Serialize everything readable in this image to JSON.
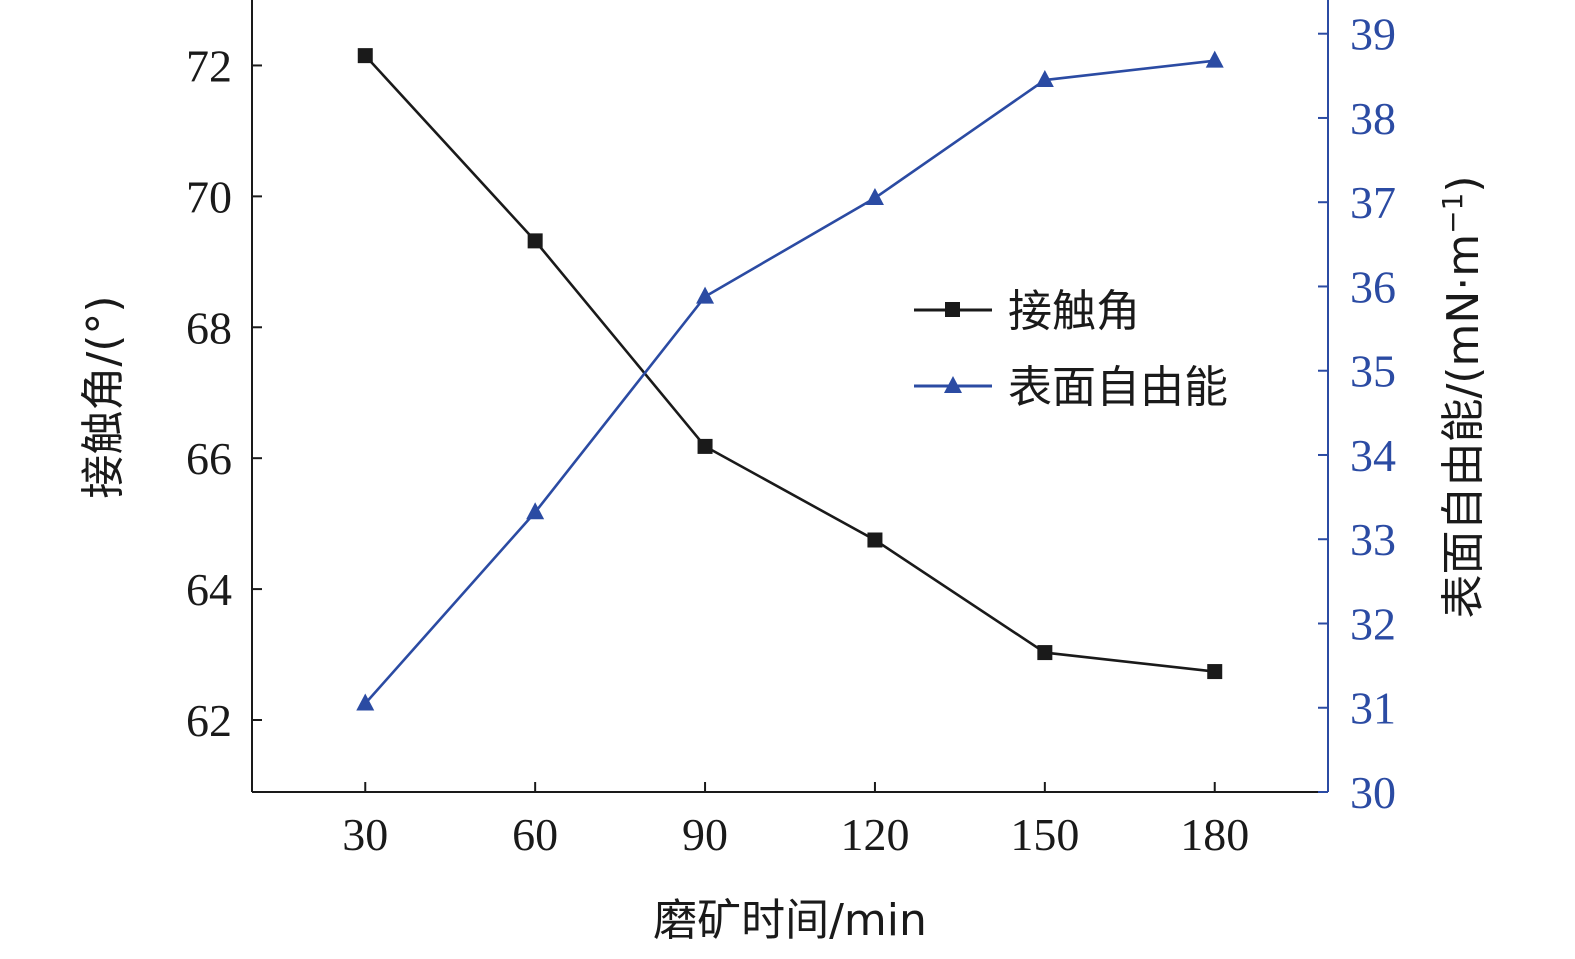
{
  "chart_data": {
    "type": "line",
    "x": [
      30,
      60,
      90,
      120,
      150,
      180
    ],
    "xlabel": "磨矿时间/min",
    "xlim": [
      10,
      200
    ],
    "xticks": [
      30,
      60,
      90,
      120,
      150,
      180
    ],
    "ylabel_left": "接触角/(°)",
    "ylim_left": [
      60.9,
      73
    ],
    "yticks_left": [
      62,
      64,
      66,
      68,
      70,
      72
    ],
    "ylabel_right_main": "表面自由能/(mN·m",
    "ylabel_right_sup": "−1",
    "ylabel_right_close": ")",
    "ylim_right": [
      30,
      39.4
    ],
    "yticks_right": [
      30,
      31,
      32,
      33,
      34,
      35,
      36,
      37,
      38,
      39
    ],
    "legend_position": "center-right",
    "grid": false,
    "series": [
      {
        "name": "接触角",
        "axis": "left",
        "marker": "square",
        "color": "#1a1a1a",
        "values": [
          72.15,
          69.32,
          66.18,
          64.75,
          63.03,
          62.74
        ]
      },
      {
        "name": "表面自由能",
        "axis": "right",
        "marker": "triangle",
        "color": "#2b4ba3",
        "values": [
          31.05,
          33.32,
          35.88,
          37.05,
          38.45,
          38.68
        ]
      }
    ]
  }
}
